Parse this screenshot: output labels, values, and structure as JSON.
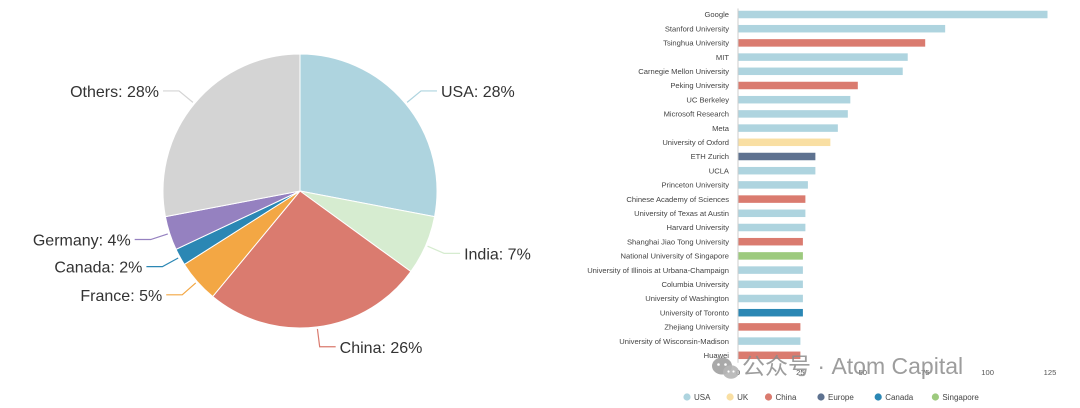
{
  "chart_data": [
    {
      "type": "pie",
      "slices": [
        {
          "label": "USA",
          "value": 28,
          "display": "USA: 28%",
          "color": "#aed4df"
        },
        {
          "label": "India",
          "value": 7,
          "display": "India: 7%",
          "color": "#d6ecd0"
        },
        {
          "label": "China",
          "value": 26,
          "display": "China: 26%",
          "color": "#da7b6f"
        },
        {
          "label": "France",
          "value": 5,
          "display": "France: 5%",
          "color": "#f3a744"
        },
        {
          "label": "Canada",
          "value": 2,
          "display": "Canada: 2%",
          "color": "#2b87b4"
        },
        {
          "label": "Germany",
          "value": 4,
          "display": "Germany: 4%",
          "color": "#9581c0"
        },
        {
          "label": "Others",
          "value": 28,
          "display": "Others: 28%",
          "color": "#d4d4d4"
        }
      ],
      "start_angle_deg": 0,
      "direction": "clockwise"
    },
    {
      "type": "bar",
      "orientation": "horizontal",
      "categories": [
        "Google",
        "Stanford University",
        "Tsinghua University",
        "MIT",
        "Carnegie Mellon University",
        "Peking University",
        "UC Berkeley",
        "Microsoft Research",
        "Meta",
        "University of Oxford",
        "ETH Zurich",
        "UCLA",
        "Princeton University",
        "Chinese Academy of Sciences",
        "University of Texas at Austin",
        "Harvard University",
        "Shanghai Jiao Tong University",
        "National University of Singapore",
        "University of Illinois at Urbana-Champaign",
        "Columbia University",
        "University of Washington",
        "University of Toronto",
        "Zhejiang University",
        "University of Wisconsin-Madison",
        "Huawei"
      ],
      "values": [
        124,
        83,
        75,
        68,
        66,
        48,
        45,
        44,
        40,
        37,
        31,
        31,
        28,
        27,
        27,
        27,
        26,
        26,
        26,
        26,
        26,
        26,
        25,
        25,
        25
      ],
      "regions": [
        "USA",
        "USA",
        "China",
        "USA",
        "USA",
        "China",
        "USA",
        "USA",
        "USA",
        "UK",
        "Europe",
        "USA",
        "USA",
        "China",
        "USA",
        "USA",
        "China",
        "Singapore",
        "USA",
        "USA",
        "USA",
        "Canada",
        "China",
        "USA",
        "China"
      ],
      "x_ticks": [
        0,
        25,
        50,
        75,
        100,
        125
      ],
      "xlim": [
        0,
        125
      ],
      "legend": [
        {
          "name": "USA",
          "color": "#aed4df"
        },
        {
          "name": "UK",
          "color": "#f9dfa3"
        },
        {
          "name": "China",
          "color": "#da7b6f"
        },
        {
          "name": "Europe",
          "color": "#5e7290"
        },
        {
          "name": "Canada",
          "color": "#2b87b4"
        },
        {
          "name": "Singapore",
          "color": "#9dca7e"
        }
      ],
      "legend_position": "bottom"
    }
  ],
  "watermark": {
    "text": "公众号 · Atom Capital",
    "icon": "wechat-icon"
  }
}
